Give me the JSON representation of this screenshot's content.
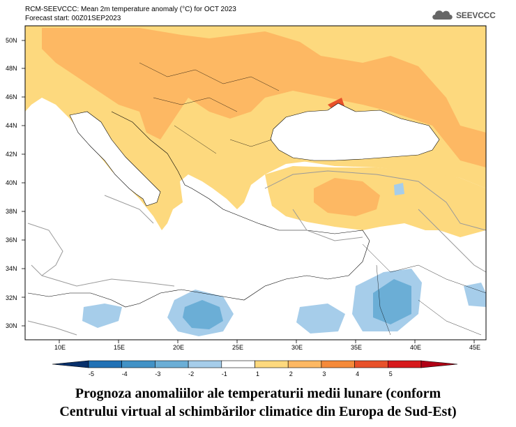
{
  "header": {
    "title": "RCM-SEEVCCC: Mean 2m temperature anomaly (°C) for OCT 2023",
    "forecast": "Forecast start: 00Z01SEP2023"
  },
  "logo": {
    "text": "SEEVCCC"
  },
  "map": {
    "lat_ticks": [
      "30N",
      "32N",
      "34N",
      "36N",
      "38N",
      "40N",
      "42N",
      "44N",
      "46N",
      "48N",
      "50N"
    ],
    "lon_ticks": [
      "10E",
      "15E",
      "20E",
      "25E",
      "30E",
      "35E",
      "40E",
      "45E"
    ]
  },
  "colorbar": {
    "ticks": [
      "-5",
      "-4",
      "-3",
      "-2",
      "-1",
      "1",
      "2",
      "3",
      "4",
      "5"
    ],
    "colors": [
      "#08306b",
      "#2171b5",
      "#4292c6",
      "#6baed6",
      "#a6cdea",
      "#ffffff",
      "#fdd97e",
      "#fdb863",
      "#f58a3a",
      "#e8512a",
      "#d7191c",
      "#b00015"
    ]
  },
  "caption": {
    "line1": "Prognoza anomaliilor ale temperaturii medii lunare (conform",
    "line2": "Centrului virtual al schimbărilor climatice din Europa de Sud-Est)"
  }
}
